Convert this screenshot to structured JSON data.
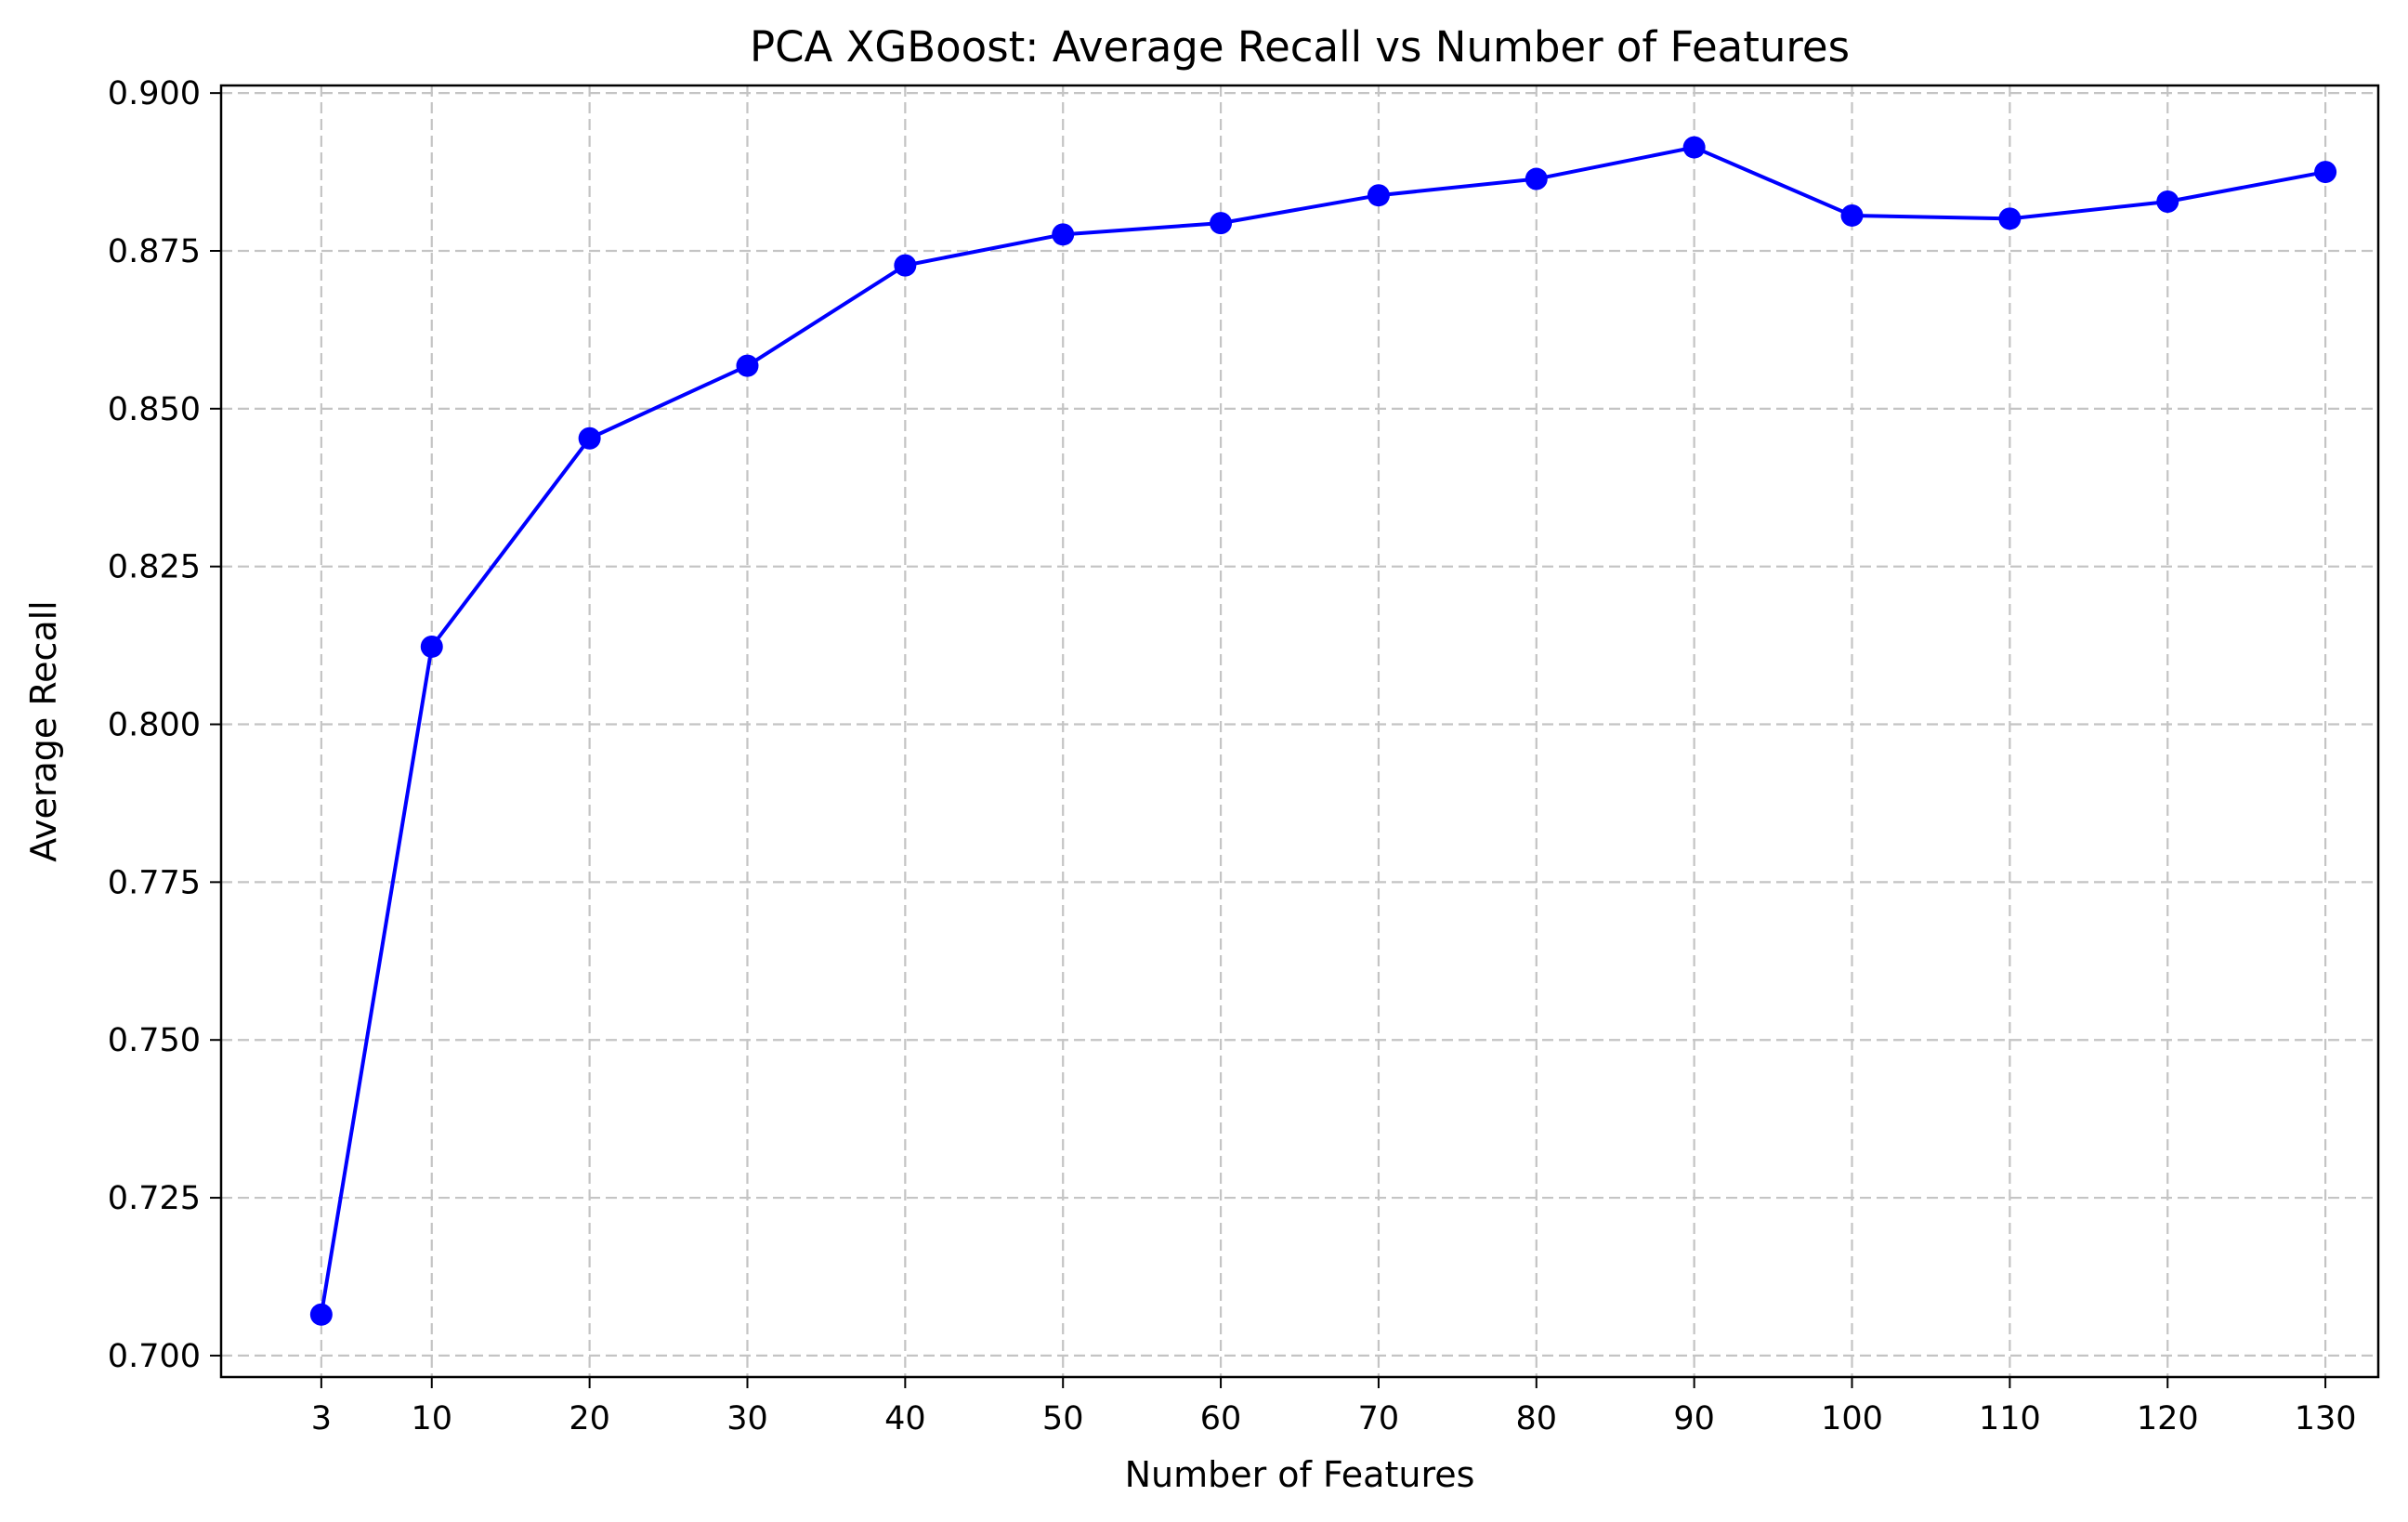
{
  "chart_data": {
    "type": "line",
    "title": "PCA XGBoost: Average Recall vs Number of Features",
    "xlabel": "Number of Features",
    "ylabel": "Average Recall",
    "x": [
      3,
      10,
      20,
      30,
      40,
      50,
      60,
      70,
      80,
      90,
      100,
      110,
      120,
      130
    ],
    "x_tick_labels": [
      "3",
      "10",
      "20",
      "30",
      "40",
      "50",
      "60",
      "70",
      "80",
      "90",
      "100",
      "110",
      "120",
      "130"
    ],
    "series": [
      {
        "values": [
          0.7065,
          0.8123,
          0.8453,
          0.8568,
          0.8727,
          0.8776,
          0.8794,
          0.8838,
          0.8864,
          0.8914,
          0.8806,
          0.8801,
          0.8828,
          0.8875
        ],
        "color": "#0000ff",
        "marker": "circle"
      }
    ],
    "xlim": [
      -3.35,
      133.35
    ],
    "ylim": [
      0.6966,
      0.9012
    ],
    "y_ticks": [
      0.7,
      0.725,
      0.75,
      0.775,
      0.8,
      0.825,
      0.85,
      0.875,
      0.9
    ],
    "y_tick_labels": [
      "0.700",
      "0.725",
      "0.750",
      "0.775",
      "0.800",
      "0.825",
      "0.850",
      "0.875",
      "0.900"
    ],
    "grid": true,
    "legend": "none"
  }
}
